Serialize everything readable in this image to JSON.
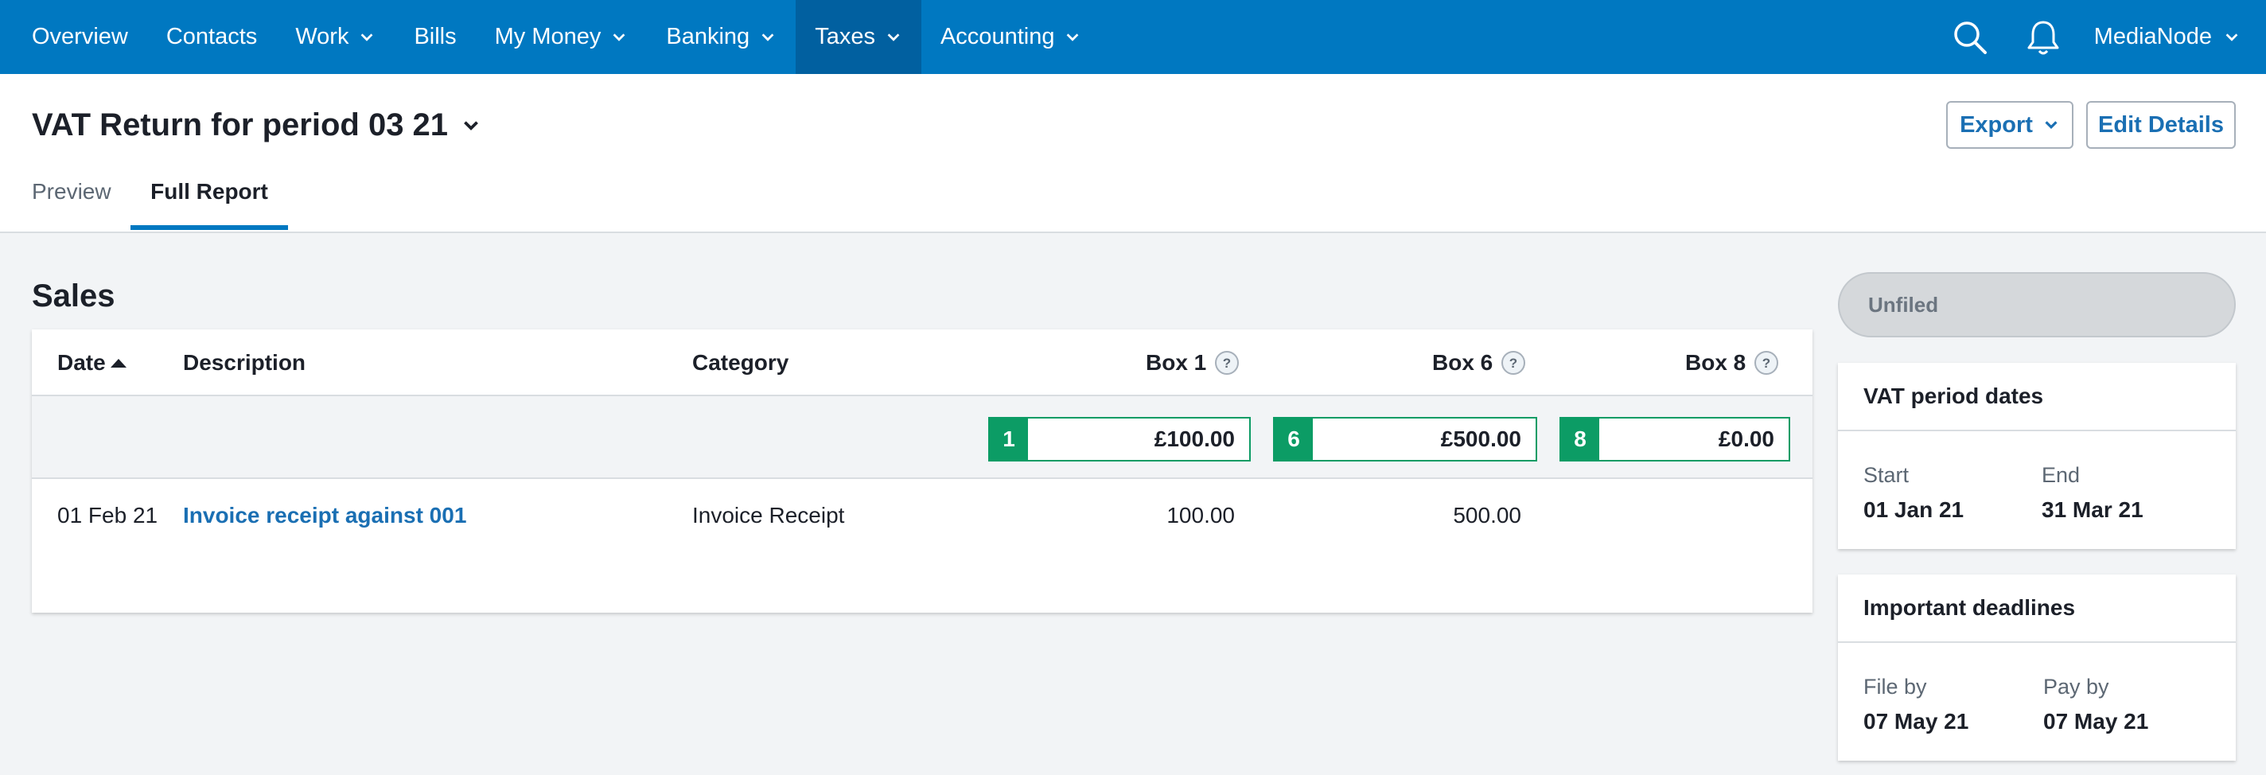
{
  "nav": {
    "items": [
      {
        "label": "Overview"
      },
      {
        "label": "Contacts"
      },
      {
        "label": "Work"
      },
      {
        "label": "Bills"
      },
      {
        "label": "My Money"
      },
      {
        "label": "Banking"
      },
      {
        "label": "Taxes"
      },
      {
        "label": "Accounting"
      }
    ],
    "org_name": "MediaNode"
  },
  "header": {
    "title": "VAT Return for period 03 21",
    "export_label": "Export",
    "edit_label": "Edit Details",
    "tabs": [
      {
        "label": "Preview"
      },
      {
        "label": "Full Report"
      }
    ]
  },
  "sales": {
    "title": "Sales",
    "columns": {
      "date": "Date",
      "description": "Description",
      "category": "Category",
      "box1": "Box 1",
      "box6": "Box 6",
      "box8": "Box 8"
    },
    "totals": [
      {
        "num": "1",
        "amount": "£100.00"
      },
      {
        "num": "6",
        "amount": "£500.00"
      },
      {
        "num": "8",
        "amount": "£0.00"
      }
    ],
    "rows": [
      {
        "date": "01 Feb 21",
        "description": "Invoice receipt against 001",
        "category": "Invoice Receipt",
        "box1": "100.00",
        "box6": "500.00",
        "box8": ""
      }
    ]
  },
  "sidebar": {
    "status": "Unfiled",
    "period": {
      "title": "VAT period dates",
      "start_label": "Start",
      "start_value": "01 Jan 21",
      "end_label": "End",
      "end_value": "31 Mar 21"
    },
    "deadlines": {
      "title": "Important deadlines",
      "file_label": "File by",
      "file_value": "07 May 21",
      "pay_label": "Pay by",
      "pay_value": "07 May 21"
    }
  },
  "colors": {
    "nav_bg": "#0078c1",
    "nav_active": "#0160a0",
    "link": "#1a6fb3",
    "box_green": "#0c9c65"
  }
}
